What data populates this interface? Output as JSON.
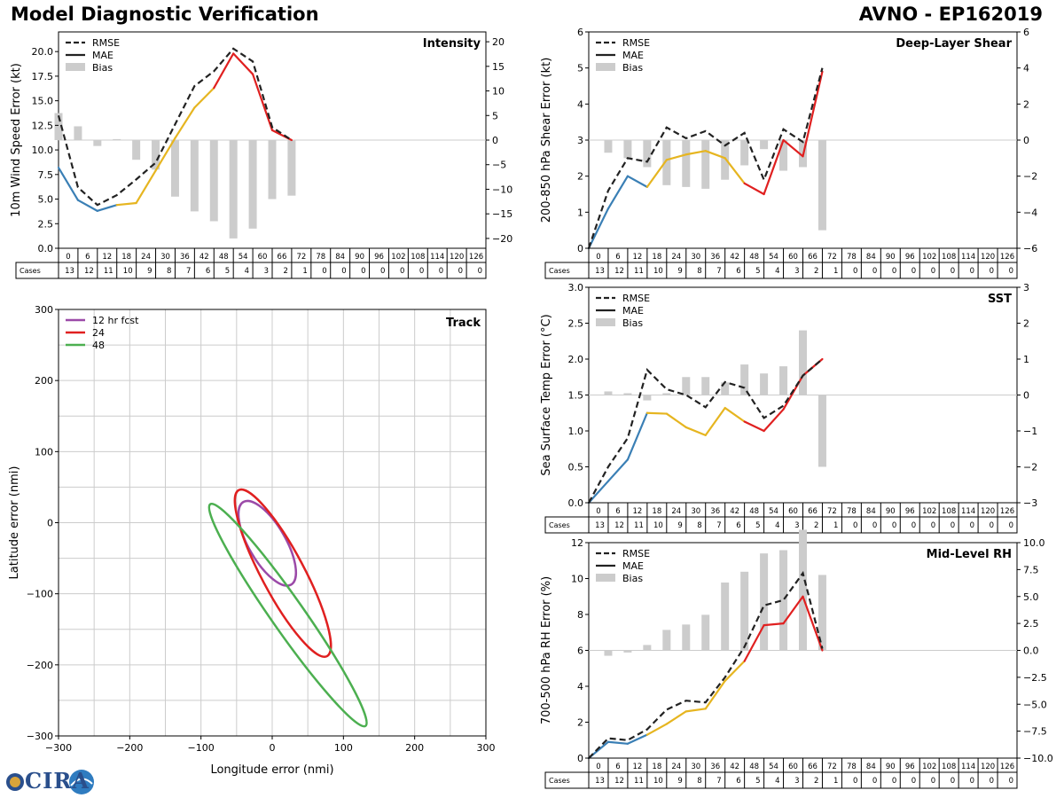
{
  "header": {
    "left_title": "Model Diagnostic Verification",
    "right_title": "AVNO - EP162019"
  },
  "colors": {
    "rmse": "#222222",
    "bias": "#cccccc",
    "blue": "#3a7fb5",
    "gold": "#e6b520",
    "red": "#e02020",
    "track12": "#9b4aa8",
    "track24": "#e02020",
    "track48": "#4caf50",
    "grid": "#cccccc"
  },
  "legend": {
    "rmse": "RMSE",
    "mae": "MAE",
    "bias": "Bias"
  },
  "table": {
    "hours": [
      "0",
      "6",
      "12",
      "18",
      "24",
      "30",
      "36",
      "42",
      "48",
      "54",
      "60",
      "66",
      "72",
      "78",
      "84",
      "90",
      "96",
      "102",
      "108",
      "114",
      "120",
      "126"
    ],
    "cases_label": "Cases",
    "cases": [
      "13",
      "12",
      "11",
      "10",
      "9",
      "8",
      "7",
      "6",
      "5",
      "4",
      "3",
      "2",
      "1",
      "0",
      "0",
      "0",
      "0",
      "0",
      "0",
      "0",
      "0",
      "0"
    ]
  },
  "logo": {
    "text": "CIRA"
  },
  "chart_data": [
    {
      "id": "intensity",
      "type": "line",
      "title": "Intensity",
      "ylabel": "10m Wind Speed Error (kt)",
      "ylim": [
        0,
        22
      ],
      "y_ticks": [
        "0.0",
        "2.5",
        "5.0",
        "7.5",
        "10.0",
        "12.5",
        "15.0",
        "17.5",
        "20.0"
      ],
      "y2lim": [
        -22,
        22
      ],
      "y2_ticks": [
        "−20",
        "−15",
        "−10",
        "−5",
        "0",
        "5",
        "10",
        "15",
        "20"
      ],
      "x": [
        0,
        6,
        12,
        18,
        24,
        30,
        36,
        42,
        48,
        54,
        60,
        66,
        72
      ],
      "rmse": [
        13.5,
        6.2,
        4.4,
        5.4,
        7.0,
        8.7,
        12.6,
        16.5,
        18.0,
        20.3,
        19.0,
        12.3,
        11.0
      ],
      "mae": [
        8.2,
        4.9,
        3.8,
        4.4,
        4.6,
        7.9,
        11.2,
        14.3,
        16.3,
        19.8,
        17.7,
        12.0,
        11.0
      ],
      "mae_colors": [
        "#3a7fb5",
        "#3a7fb5",
        "#3a7fb5",
        "#e6b520",
        "#e6b520",
        "#e6b520",
        "#e6b520",
        "#e6b520",
        "#e02020",
        "#e02020",
        "#e02020",
        "#e02020"
      ],
      "bias": [
        5.5,
        2.8,
        -1.2,
        0.2,
        -4.0,
        -6.0,
        -11.5,
        -14.5,
        -16.5,
        -20.0,
        -18.0,
        -12.0,
        -11.3
      ]
    },
    {
      "id": "shear",
      "type": "line",
      "title": "Deep-Layer Shear",
      "ylabel": "200-850 hPa Shear Error (kt)",
      "ylim": [
        0,
        6
      ],
      "y_ticks": [
        "0",
        "1",
        "2",
        "3",
        "4",
        "5",
        "6"
      ],
      "y2lim": [
        -6,
        6
      ],
      "y2_ticks": [
        "−6",
        "−4",
        "−2",
        "0",
        "2",
        "4",
        "6"
      ],
      "x": [
        0,
        6,
        12,
        18,
        24,
        30,
        36,
        42,
        48,
        54,
        60,
        66,
        72
      ],
      "rmse": [
        0,
        1.6,
        2.5,
        2.4,
        3.35,
        3.05,
        3.25,
        2.85,
        3.2,
        1.9,
        3.3,
        2.95,
        5.0
      ],
      "mae": [
        0,
        1.1,
        2.0,
        1.7,
        2.45,
        2.6,
        2.7,
        2.5,
        1.8,
        1.5,
        3.0,
        2.55,
        4.9
      ],
      "mae_colors": [
        "#3a7fb5",
        "#3a7fb5",
        "#3a7fb5",
        "#e6b520",
        "#e6b520",
        "#e6b520",
        "#e6b520",
        "#e6b520",
        "#e02020",
        "#e02020",
        "#e02020",
        "#e02020"
      ],
      "bias": [
        0,
        -0.7,
        -1.0,
        -1.5,
        -2.5,
        -2.6,
        -2.7,
        -2.2,
        -1.4,
        -0.5,
        -1.7,
        -1.5,
        -5.0
      ]
    },
    {
      "id": "sst",
      "type": "line",
      "title": "SST",
      "ylabel": "Sea Surface Temp Error (°C)",
      "ylim": [
        0,
        3
      ],
      "y_ticks": [
        "0.0",
        "0.5",
        "1.0",
        "1.5",
        "2.0",
        "2.5",
        "3.0"
      ],
      "y2lim": [
        -3,
        3
      ],
      "y2_ticks": [
        "−3",
        "−2",
        "−1",
        "0",
        "1",
        "2",
        "3"
      ],
      "x": [
        0,
        6,
        12,
        18,
        24,
        30,
        36,
        42,
        48,
        54,
        60,
        66,
        72
      ],
      "rmse": [
        0,
        0.5,
        0.9,
        1.85,
        1.58,
        1.5,
        1.33,
        1.68,
        1.6,
        1.18,
        1.35,
        1.77,
        2.0
      ],
      "mae": [
        0,
        0.3,
        0.6,
        1.25,
        1.24,
        1.05,
        0.94,
        1.32,
        1.13,
        1.0,
        1.3,
        1.77,
        2.0
      ],
      "mae_colors": [
        "#3a7fb5",
        "#3a7fb5",
        "#3a7fb5",
        "#e6b520",
        "#e6b520",
        "#e6b520",
        "#e6b520",
        "#e6b520",
        "#e02020",
        "#e02020",
        "#e02020",
        "#e02020"
      ],
      "bias": [
        0,
        0.1,
        0.05,
        -0.15,
        0.05,
        0.5,
        0.5,
        0.35,
        0.85,
        0.6,
        0.8,
        1.8,
        -2.0
      ]
    },
    {
      "id": "rh",
      "type": "line",
      "title": "Mid-Level RH",
      "ylabel": "700-500 hPa RH Error (%)",
      "ylim": [
        0,
        12
      ],
      "y_ticks": [
        "0",
        "2",
        "4",
        "6",
        "8",
        "10",
        "12"
      ],
      "y2lim": [
        -10,
        10
      ],
      "y2_ticks": [
        "−10.0",
        "−7.5",
        "−5.0",
        "−2.5",
        "0.0",
        "2.5",
        "5.0",
        "7.5",
        "10.0"
      ],
      "x": [
        0,
        6,
        12,
        18,
        24,
        30,
        36,
        42,
        48,
        54,
        60,
        66,
        72
      ],
      "rmse": [
        0,
        1.1,
        1.0,
        1.6,
        2.7,
        3.2,
        3.1,
        4.5,
        6.2,
        8.5,
        8.8,
        10.3,
        6.1
      ],
      "mae": [
        0,
        0.9,
        0.8,
        1.3,
        1.9,
        2.6,
        2.75,
        4.3,
        5.4,
        7.4,
        7.5,
        9.0,
        6.0
      ],
      "mae_colors": [
        "#3a7fb5",
        "#3a7fb5",
        "#3a7fb5",
        "#e6b520",
        "#e6b520",
        "#e6b520",
        "#e6b520",
        "#e6b520",
        "#e02020",
        "#e02020",
        "#e02020",
        "#e02020"
      ],
      "bias": [
        0,
        -0.5,
        -0.2,
        0.5,
        1.9,
        2.4,
        3.3,
        6.3,
        7.3,
        9.0,
        9.3,
        11.2,
        7.0
      ]
    },
    {
      "id": "track",
      "type": "scatter",
      "title": "Track",
      "xlabel": "Longitude error (nmi)",
      "ylabel": "Latitude error (nmi)",
      "xlim": [
        -300,
        300
      ],
      "ylim": [
        -300,
        300
      ],
      "ticks": [
        "−300",
        "−200",
        "−100",
        "0",
        "100",
        "200",
        "300"
      ],
      "ellipses": [
        {
          "name": "12 hr fcst",
          "cx": -7,
          "cy": -29,
          "rx": 67,
          "ry": 26,
          "angle": 60
        },
        {
          "name": "24",
          "cx": 15,
          "cy": -71,
          "rx": 132,
          "ry": 30,
          "angle": 62
        },
        {
          "name": "48",
          "cx": 22,
          "cy": -130,
          "rx": 190,
          "ry": 23,
          "angle": 55
        }
      ]
    }
  ]
}
